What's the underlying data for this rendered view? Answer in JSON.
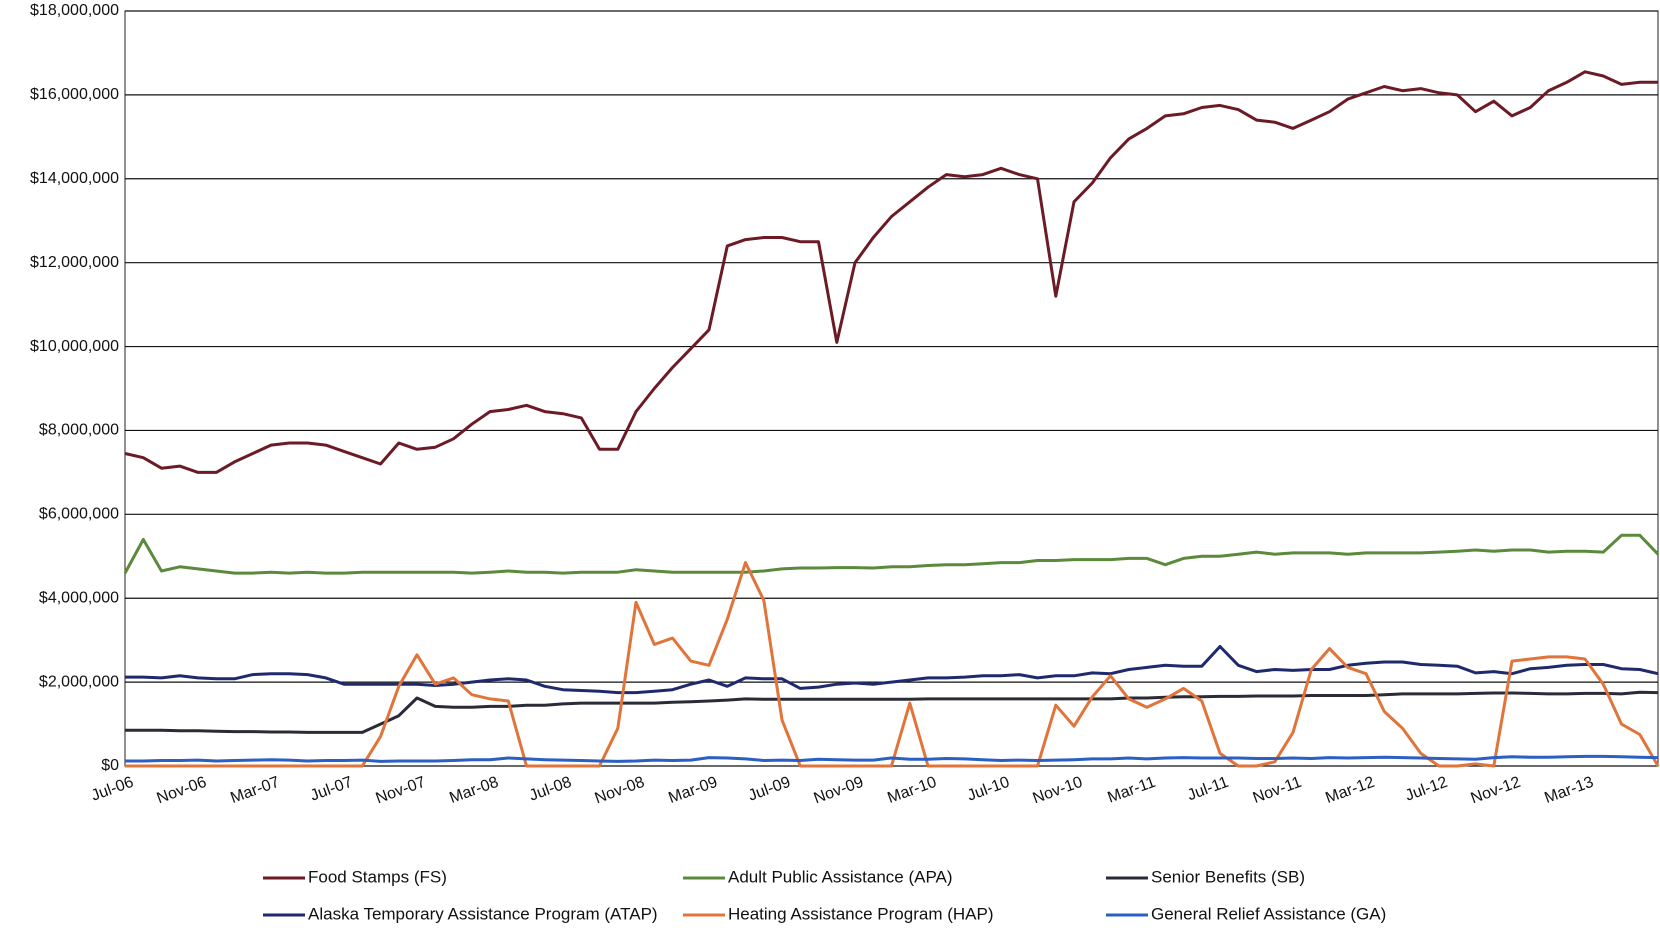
{
  "chart_data": {
    "type": "line",
    "categories": [
      "Jul-06",
      null,
      null,
      null,
      "Nov-06",
      null,
      null,
      null,
      "Mar-07",
      null,
      null,
      null,
      "Jul-07",
      null,
      null,
      null,
      "Nov-07",
      null,
      null,
      null,
      "Mar-08",
      null,
      null,
      null,
      "Jul-08",
      null,
      null,
      null,
      "Nov-08",
      null,
      null,
      null,
      "Mar-09",
      null,
      null,
      null,
      "Jul-09",
      null,
      null,
      null,
      "Nov-09",
      null,
      null,
      null,
      "Mar-10",
      null,
      null,
      null,
      "Jul-10",
      null,
      null,
      null,
      "Nov-10",
      null,
      null,
      null,
      "Mar-11",
      null,
      null,
      null,
      "Jul-11",
      null,
      null,
      null,
      "Nov-11",
      null,
      null,
      null,
      "Mar-12",
      null,
      null,
      null,
      "Jul-12",
      null,
      null,
      null,
      "Nov-12",
      null,
      null,
      null,
      "Mar-13",
      null,
      null,
      null,
      null
    ],
    "ylim": [
      0,
      18000000
    ],
    "yticks": [
      {
        "value": 0,
        "label": "$0"
      },
      {
        "value": 2000000,
        "label": "$2,000,000"
      },
      {
        "value": 4000000,
        "label": "$4,000,000"
      },
      {
        "value": 6000000,
        "label": "$6,000,000"
      },
      {
        "value": 8000000,
        "label": "$8,000,000"
      },
      {
        "value": 10000000,
        "label": "$10,000,000"
      },
      {
        "value": 12000000,
        "label": "$12,000,000"
      },
      {
        "value": 14000000,
        "label": "$14,000,000"
      },
      {
        "value": 16000000,
        "label": "$16,000,000"
      },
      {
        "value": 18000000,
        "label": "$18,000,000"
      }
    ],
    "grid": true,
    "legend": "bottom",
    "series": [
      {
        "name": "Food Stamps (FS)",
        "color": "#6b1a26",
        "values": [
          7450000,
          7350000,
          7100000,
          7150000,
          7000000,
          7000000,
          7250000,
          7450000,
          7650000,
          7700000,
          7700000,
          7650000,
          7500000,
          7350000,
          7200000,
          7700000,
          7550000,
          7600000,
          7800000,
          8150000,
          8450000,
          8500000,
          8600000,
          8450000,
          8400000,
          8300000,
          7550000,
          7550000,
          8450000,
          9000000,
          9500000,
          9950000,
          10400000,
          12400000,
          12550000,
          12600000,
          12600000,
          12500000,
          12500000,
          10100000,
          12000000,
          12600000,
          13100000,
          13450000,
          13800000,
          14100000,
          14050000,
          14100000,
          14250000,
          14100000,
          14000000,
          11200000,
          13450000,
          13900000,
          14500000,
          14950000,
          15200000,
          15500000,
          15550000,
          15700000,
          15750000,
          15650000,
          15400000,
          15350000,
          15200000,
          15400000,
          15600000,
          15900000,
          16050000,
          16200000,
          16100000,
          16150000,
          16050000,
          16000000,
          15600000,
          15850000,
          15500000,
          15700000,
          16100000,
          16300000,
          16550000,
          16450000,
          16250000,
          16300000,
          16300000
        ]
      },
      {
        "name": "Adult Public Assistance (APA)",
        "color": "#5b8a3c",
        "values": [
          4600000,
          5400000,
          4650000,
          4750000,
          4700000,
          4650000,
          4600000,
          4600000,
          4620000,
          4600000,
          4620000,
          4600000,
          4600000,
          4620000,
          4620000,
          4620000,
          4620000,
          4620000,
          4620000,
          4600000,
          4620000,
          4650000,
          4620000,
          4620000,
          4600000,
          4620000,
          4620000,
          4620000,
          4680000,
          4650000,
          4620000,
          4620000,
          4620000,
          4620000,
          4620000,
          4650000,
          4700000,
          4720000,
          4720000,
          4730000,
          4730000,
          4720000,
          4750000,
          4750000,
          4780000,
          4800000,
          4800000,
          4820000,
          4850000,
          4850000,
          4900000,
          4900000,
          4920000,
          4920000,
          4920000,
          4950000,
          4950000,
          4800000,
          4950000,
          5000000,
          5000000,
          5050000,
          5100000,
          5050000,
          5080000,
          5080000,
          5080000,
          5050000,
          5080000,
          5080000,
          5080000,
          5080000,
          5100000,
          5120000,
          5150000,
          5120000,
          5150000,
          5150000,
          5100000,
          5120000,
          5120000,
          5100000,
          5500000,
          5500000,
          5050000
        ]
      },
      {
        "name": "Senior Benefits (SB)",
        "color": "#2b2b38",
        "values": [
          850000,
          850000,
          850000,
          840000,
          840000,
          830000,
          820000,
          820000,
          810000,
          810000,
          800000,
          800000,
          800000,
          800000,
          1000000,
          1200000,
          1620000,
          1420000,
          1400000,
          1400000,
          1420000,
          1420000,
          1450000,
          1450000,
          1480000,
          1500000,
          1500000,
          1500000,
          1500000,
          1500000,
          1520000,
          1530000,
          1550000,
          1570000,
          1600000,
          1590000,
          1590000,
          1590000,
          1590000,
          1590000,
          1590000,
          1590000,
          1590000,
          1590000,
          1600000,
          1600000,
          1600000,
          1600000,
          1600000,
          1600000,
          1600000,
          1600000,
          1600000,
          1600000,
          1600000,
          1620000,
          1620000,
          1640000,
          1650000,
          1650000,
          1660000,
          1660000,
          1670000,
          1670000,
          1670000,
          1680000,
          1680000,
          1680000,
          1680000,
          1700000,
          1720000,
          1720000,
          1720000,
          1720000,
          1730000,
          1740000,
          1740000,
          1730000,
          1720000,
          1720000,
          1730000,
          1730000,
          1720000,
          1760000,
          1750000
        ]
      },
      {
        "name": "Alaska Temporary Assistance Program (ATAP)",
        "color": "#1f2a6e",
        "values": [
          2120000,
          2120000,
          2100000,
          2150000,
          2100000,
          2080000,
          2080000,
          2180000,
          2200000,
          2200000,
          2180000,
          2100000,
          1950000,
          1950000,
          1950000,
          1950000,
          1950000,
          1920000,
          1950000,
          2000000,
          2050000,
          2080000,
          2050000,
          1900000,
          1820000,
          1800000,
          1780000,
          1750000,
          1750000,
          1780000,
          1820000,
          1950000,
          2050000,
          1900000,
          2100000,
          2080000,
          2080000,
          1850000,
          1880000,
          1950000,
          1980000,
          1950000,
          2000000,
          2050000,
          2100000,
          2100000,
          2120000,
          2150000,
          2150000,
          2180000,
          2100000,
          2150000,
          2150000,
          2220000,
          2200000,
          2300000,
          2350000,
          2400000,
          2380000,
          2380000,
          2850000,
          2400000,
          2250000,
          2300000,
          2280000,
          2300000,
          2300000,
          2400000,
          2450000,
          2480000,
          2480000,
          2420000,
          2400000,
          2380000,
          2220000,
          2250000,
          2200000,
          2320000,
          2350000,
          2400000,
          2420000,
          2420000,
          2320000,
          2300000,
          2200000
        ]
      },
      {
        "name": "Heating Assistance Program (HAP)",
        "color": "#e0743a",
        "values": [
          0,
          0,
          0,
          0,
          0,
          0,
          0,
          0,
          0,
          0,
          0,
          0,
          0,
          0,
          700000,
          1900000,
          2650000,
          1950000,
          2100000,
          1700000,
          1600000,
          1550000,
          0,
          0,
          0,
          0,
          0,
          900000,
          3900000,
          2900000,
          3050000,
          2500000,
          2400000,
          3500000,
          4850000,
          3950000,
          1100000,
          0,
          0,
          0,
          0,
          0,
          0,
          1500000,
          0,
          0,
          0,
          0,
          0,
          0,
          0,
          1450000,
          950000,
          1650000,
          2150000,
          1600000,
          1400000,
          1600000,
          1850000,
          1550000,
          300000,
          0,
          0,
          100000,
          800000,
          2300000,
          2800000,
          2350000,
          2200000,
          1300000,
          900000,
          300000,
          0,
          0,
          50000,
          0,
          2500000,
          2550000,
          2600000,
          2600000,
          2550000,
          1950000,
          1000000,
          750000,
          0
        ]
      },
      {
        "name": "General Relief Assistance (GA)",
        "color": "#2a5fc4",
        "values": [
          120000,
          120000,
          130000,
          130000,
          140000,
          120000,
          130000,
          140000,
          150000,
          140000,
          120000,
          130000,
          130000,
          140000,
          110000,
          120000,
          120000,
          120000,
          130000,
          150000,
          150000,
          190000,
          170000,
          150000,
          140000,
          130000,
          120000,
          110000,
          120000,
          140000,
          130000,
          140000,
          200000,
          190000,
          170000,
          130000,
          140000,
          130000,
          160000,
          150000,
          140000,
          140000,
          190000,
          160000,
          160000,
          180000,
          170000,
          150000,
          130000,
          140000,
          130000,
          140000,
          150000,
          170000,
          170000,
          190000,
          170000,
          190000,
          200000,
          190000,
          190000,
          190000,
          180000,
          180000,
          190000,
          180000,
          200000,
          190000,
          200000,
          210000,
          200000,
          190000,
          180000,
          170000,
          160000,
          200000,
          220000,
          210000,
          210000,
          220000,
          230000,
          230000,
          220000,
          210000,
          200000
        ]
      }
    ]
  }
}
